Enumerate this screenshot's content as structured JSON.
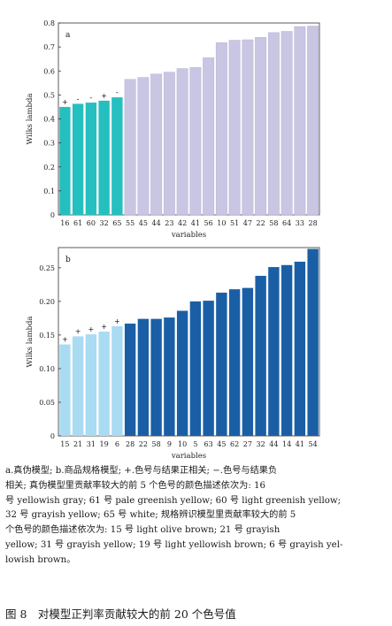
{
  "chart_data": [
    {
      "type": "bar",
      "panel_label": "a",
      "xlabel": "variables",
      "ylabel": "Wilks lambda",
      "ylim": [
        0,
        0.8
      ],
      "yticks": [
        "0",
        "0.1",
        "0.2",
        "0.3",
        "0.4",
        "0.5",
        "0.6",
        "0.7",
        "0.8"
      ],
      "categories": [
        "16",
        "61",
        "60",
        "32",
        "65",
        "55",
        "45",
        "44",
        "23",
        "42",
        "41",
        "56",
        "10",
        "51",
        "47",
        "22",
        "58",
        "64",
        "33",
        "28"
      ],
      "values": [
        0.45,
        0.463,
        0.468,
        0.476,
        0.49,
        0.565,
        0.573,
        0.587,
        0.595,
        0.61,
        0.615,
        0.655,
        0.718,
        0.728,
        0.73,
        0.74,
        0.76,
        0.765,
        0.785,
        0.787
      ],
      "signs": [
        "+",
        "-",
        "-",
        "+",
        "-",
        "",
        "",
        "",
        "",
        "",
        "",
        "",
        "",
        "",
        "",
        "",
        "",
        "",
        "",
        ""
      ],
      "highlight_count": 5,
      "colors": {
        "highlight": "#26bfbf",
        "rest": "#c9c6e3"
      },
      "grid": false
    },
    {
      "type": "bar",
      "panel_label": "b",
      "xlabel": "variables",
      "ylabel": "Wilks lambda",
      "ylim": [
        0,
        0.28
      ],
      "yticks": [
        "0",
        "0.05",
        "0.10",
        "0.15",
        "0.20",
        "0.25"
      ],
      "categories": [
        "15",
        "21",
        "31",
        "19",
        "6",
        "28",
        "22",
        "58",
        "9",
        "10",
        "5",
        "63",
        "45",
        "62",
        "27",
        "32",
        "44",
        "14",
        "41",
        "54"
      ],
      "values": [
        0.136,
        0.148,
        0.151,
        0.155,
        0.163,
        0.167,
        0.174,
        0.174,
        0.176,
        0.186,
        0.2,
        0.201,
        0.213,
        0.218,
        0.22,
        0.238,
        0.251,
        0.254,
        0.259,
        0.278
      ],
      "signs": [
        "+",
        "+",
        "+",
        "+",
        "+",
        "",
        "",
        "",
        "",
        "",
        "",
        "",
        "",
        "",
        "",
        "",
        "",
        "",
        "",
        ""
      ],
      "highlight_count": 5,
      "colors": {
        "highlight": "#a9dbf2",
        "rest": "#1a5fa6"
      },
      "grid": false
    }
  ],
  "caption": {
    "lines": [
      "a.真伪模型; b.商品规格模型; +.色号与结果正相关; −.色号与结果负",
      "相关; 真伪模型里贡献率较大的前 5 个色号的颜色描述依次为: 16",
      "号 yellowish gray; 61 号 pale greenish yellow; 60 号 light greenish yellow;",
      "32 号 grayish yellow; 65 号 white; 规格辨识模型里贡献率较大的前 5",
      "个色号的颜色描述依次为: 15 号 light olive brown; 21 号 grayish",
      "yellow; 31 号 grayish yellow; 19 号 light yellowish brown; 6 号 grayish yel-",
      "lowish brown。"
    ],
    "figure_title": "图 8　对模型正判率贡献较大的前 20 个色号值"
  }
}
